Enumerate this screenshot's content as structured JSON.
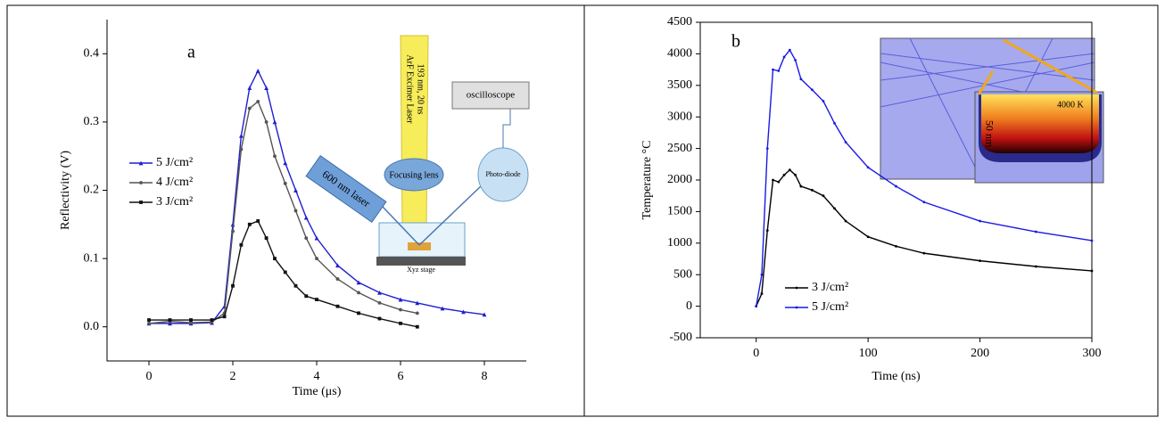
{
  "chart_data": [
    {
      "type": "line",
      "annotation": "a",
      "xlabel": "Time (μs)",
      "ylabel": "Reflectivity (V)",
      "x": [
        0,
        0.5,
        1,
        1.5,
        1.8,
        2,
        2.2,
        2.4,
        2.6,
        2.8,
        3,
        3.25,
        3.5,
        3.75,
        4,
        4.5,
        5,
        5.5,
        6,
        6.4,
        7,
        7.5,
        8
      ],
      "series": [
        {
          "name": "5 J/cm²",
          "color": "#1f1fd0",
          "marker": "triangle",
          "values": [
            0.005,
            0.005,
            0.005,
            0.006,
            0.03,
            0.15,
            0.28,
            0.35,
            0.375,
            0.35,
            0.3,
            0.24,
            0.2,
            0.16,
            0.13,
            0.09,
            0.065,
            0.05,
            0.04,
            0.035,
            0.027,
            0.022,
            0.018
          ]
        },
        {
          "name": "4 J/cm²",
          "color": "#555555",
          "marker": "circle",
          "values": [
            0.005,
            0.008,
            0.006,
            0.007,
            0.02,
            0.14,
            0.26,
            0.32,
            0.33,
            0.3,
            0.25,
            0.21,
            0.17,
            0.13,
            0.1,
            0.07,
            0.05,
            0.035,
            0.025,
            0.02,
            null,
            null,
            null
          ]
        },
        {
          "name": "3 J/cm²",
          "color": "#111111",
          "marker": "square",
          "values": [
            0.01,
            0.01,
            0.01,
            0.01,
            0.015,
            0.06,
            0.12,
            0.15,
            0.155,
            0.13,
            0.1,
            0.08,
            0.06,
            0.045,
            0.04,
            0.03,
            0.02,
            0.012,
            0.005,
            0.0,
            null,
            null,
            null
          ]
        }
      ],
      "xlim": [
        -1,
        9
      ],
      "xticks": [
        0,
        2,
        4,
        6,
        8
      ],
      "ylim": [
        -0.05,
        0.45
      ],
      "yticks": [
        {
          "value": 0,
          "label": "0.0"
        },
        0.1,
        0.2,
        0.3,
        0.4
      ],
      "frame": false
    },
    {
      "type": "line",
      "annotation": "b",
      "xlabel": "Time (ns)",
      "ylabel": "Temperature °C",
      "x": [
        0,
        5,
        10,
        15,
        20,
        25,
        30,
        35,
        40,
        50,
        60,
        70,
        80,
        100,
        125,
        150,
        200,
        250,
        300
      ],
      "series": [
        {
          "name": "3 J/cm²",
          "color": "#000000",
          "marker": "dot",
          "values": [
            0,
            200,
            1200,
            2000,
            1970,
            2080,
            2160,
            2080,
            1900,
            1840,
            1750,
            1550,
            1350,
            1100,
            950,
            840,
            720,
            630,
            560
          ]
        },
        {
          "name": "5 J/cm²",
          "color": "#1a1ae6",
          "marker": "dot",
          "values": [
            0,
            500,
            2500,
            3750,
            3730,
            3950,
            4060,
            3900,
            3600,
            3430,
            3250,
            2900,
            2600,
            2200,
            1900,
            1650,
            1350,
            1180,
            1040
          ]
        }
      ],
      "xlim": [
        -50,
        300
      ],
      "xticks": [
        0,
        100,
        200,
        300
      ],
      "ylim": [
        -500,
        4500
      ],
      "yticks": [
        -500,
        0,
        500,
        1000,
        1500,
        2000,
        2500,
        3000,
        3500,
        4000,
        4500
      ],
      "frame": true
    }
  ],
  "inset_a": {
    "laser": "ArF Excimer  Laser",
    "laser_spec": "193 nm,  20 ns",
    "lens": "Focusing lens",
    "scope": "oscilloscope",
    "diode": "Photo-diode",
    "probe": "600 nm laser",
    "stage": "Xyz stage"
  },
  "inset_b": {
    "temp": "4000 K",
    "scale": "50 nm"
  }
}
